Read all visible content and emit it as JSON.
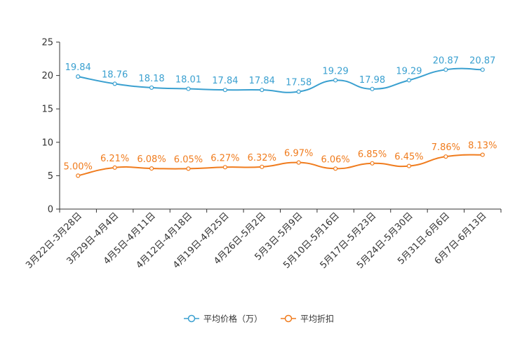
{
  "chart_data": {
    "type": "line",
    "categories": [
      "3月22日-3月28日",
      "3月29日-4月4日",
      "4月5日-4月11日",
      "4月12日-4月18日",
      "4月19日-4月25日",
      "4月26日-5月2日",
      "5月3日-5月9日",
      "5月10日-5月16日",
      "5月17日-5月23日",
      "5月24日-5月30日",
      "5月31日-6月6日",
      "6月7日-6月13日"
    ],
    "y_ticks": [
      0,
      5,
      10,
      15,
      20,
      25
    ],
    "ylim": [
      0,
      25
    ],
    "title": "",
    "xlabel": "",
    "ylabel": "",
    "legend_position": "bottom-center",
    "series": [
      {
        "name": "平均价格（万）",
        "color": "#3aa0d0",
        "values": [
          19.84,
          18.76,
          18.18,
          18.01,
          17.84,
          17.84,
          17.58,
          19.29,
          17.98,
          19.29,
          20.87,
          20.87
        ],
        "labels": [
          "19.84",
          "18.76",
          "18.18",
          "18.01",
          "17.84",
          "17.84",
          "17.58",
          "19.29",
          "17.98",
          "19.29",
          "20.87",
          "20.87"
        ]
      },
      {
        "name": "平均折扣",
        "color": "#f07c1e",
        "values": [
          5.0,
          6.21,
          6.08,
          6.05,
          6.27,
          6.32,
          6.97,
          6.06,
          6.85,
          6.45,
          7.86,
          8.13
        ],
        "labels": [
          "5.00%",
          "6.21%",
          "6.08%",
          "6.05%",
          "6.27%",
          "6.32%",
          "6.97%",
          "6.06%",
          "6.85%",
          "6.45%",
          "7.86%",
          "8.13%"
        ]
      }
    ]
  }
}
